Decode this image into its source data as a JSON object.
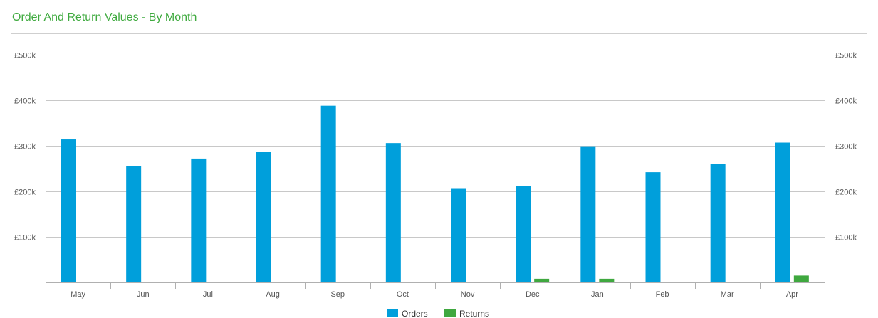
{
  "panel": {
    "title": "Order And Return Values - By Month"
  },
  "colors": {
    "orders": "#009fdb",
    "returns": "#3fa83f",
    "title": "#3faa3f",
    "grid": "#c8c8c8"
  },
  "chart_data": {
    "type": "bar",
    "categories": [
      "May",
      "Jun",
      "Jul",
      "Aug",
      "Sep",
      "Oct",
      "Nov",
      "Dec",
      "Jan",
      "Feb",
      "Mar",
      "Apr"
    ],
    "series": [
      {
        "name": "Orders",
        "values": [
          314000,
          256000,
          272000,
          287000,
          388000,
          306000,
          207000,
          211000,
          299000,
          242000,
          260000,
          307000
        ]
      },
      {
        "name": "Returns",
        "values": [
          0,
          0,
          0,
          0,
          0,
          0,
          0,
          8000,
          8000,
          0,
          0,
          15000
        ]
      }
    ],
    "ylim": [
      0,
      500000
    ],
    "yticks": [
      {
        "value": 100000,
        "label": "£100k"
      },
      {
        "value": 200000,
        "label": "£200k"
      },
      {
        "value": 300000,
        "label": "£300k"
      },
      {
        "value": 400000,
        "label": "£400k"
      },
      {
        "value": 500000,
        "label": "£500k"
      }
    ],
    "grid": true,
    "secondary_axis": true,
    "legend_position": "bottom-center"
  }
}
